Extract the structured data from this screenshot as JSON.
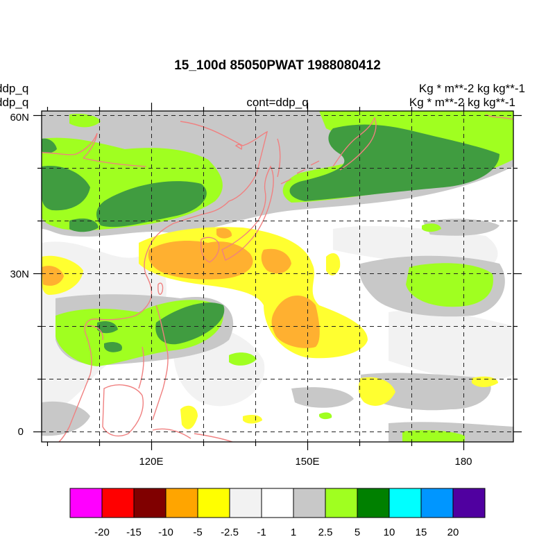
{
  "title": "15_100d 85050PWAT  1988080412",
  "left_labels": [
    "ddp_q",
    "ddp_q"
  ],
  "right_labels": [
    "Kg  * m**-2 kg kg**-1",
    "Kg  * m**-2 kg kg**-1"
  ],
  "center_label": "cont=ddp_q",
  "map": {
    "lon_range": [
      96,
      187
    ],
    "lat_range": [
      -2,
      60
    ],
    "lat_ticks": [
      {
        "value": 60,
        "label": "60N"
      },
      {
        "value": 30,
        "label": "30N"
      },
      {
        "value": 0,
        "label": "0"
      }
    ],
    "lon_ticks": [
      {
        "value": 120,
        "label": "120E"
      },
      {
        "value": 150,
        "label": "150E"
      },
      {
        "value": 180,
        "label": "180"
      }
    ],
    "gridlines": "dashed every 10 degrees"
  },
  "colorbar": {
    "colors": [
      "#ff00ff",
      "#ff0000",
      "#800000",
      "#ffa500",
      "#ffff00",
      "#f2f2f2",
      "#ffffff",
      "#c8c8c8",
      "#a0ff20",
      "#008000",
      "#00ffff",
      "#0096ff",
      "#5000a0"
    ],
    "labels": [
      "-20",
      "-15",
      "-10",
      "-5",
      "-2.5",
      "-1",
      "1",
      "2.5",
      "5",
      "10",
      "15",
      "20"
    ]
  }
}
